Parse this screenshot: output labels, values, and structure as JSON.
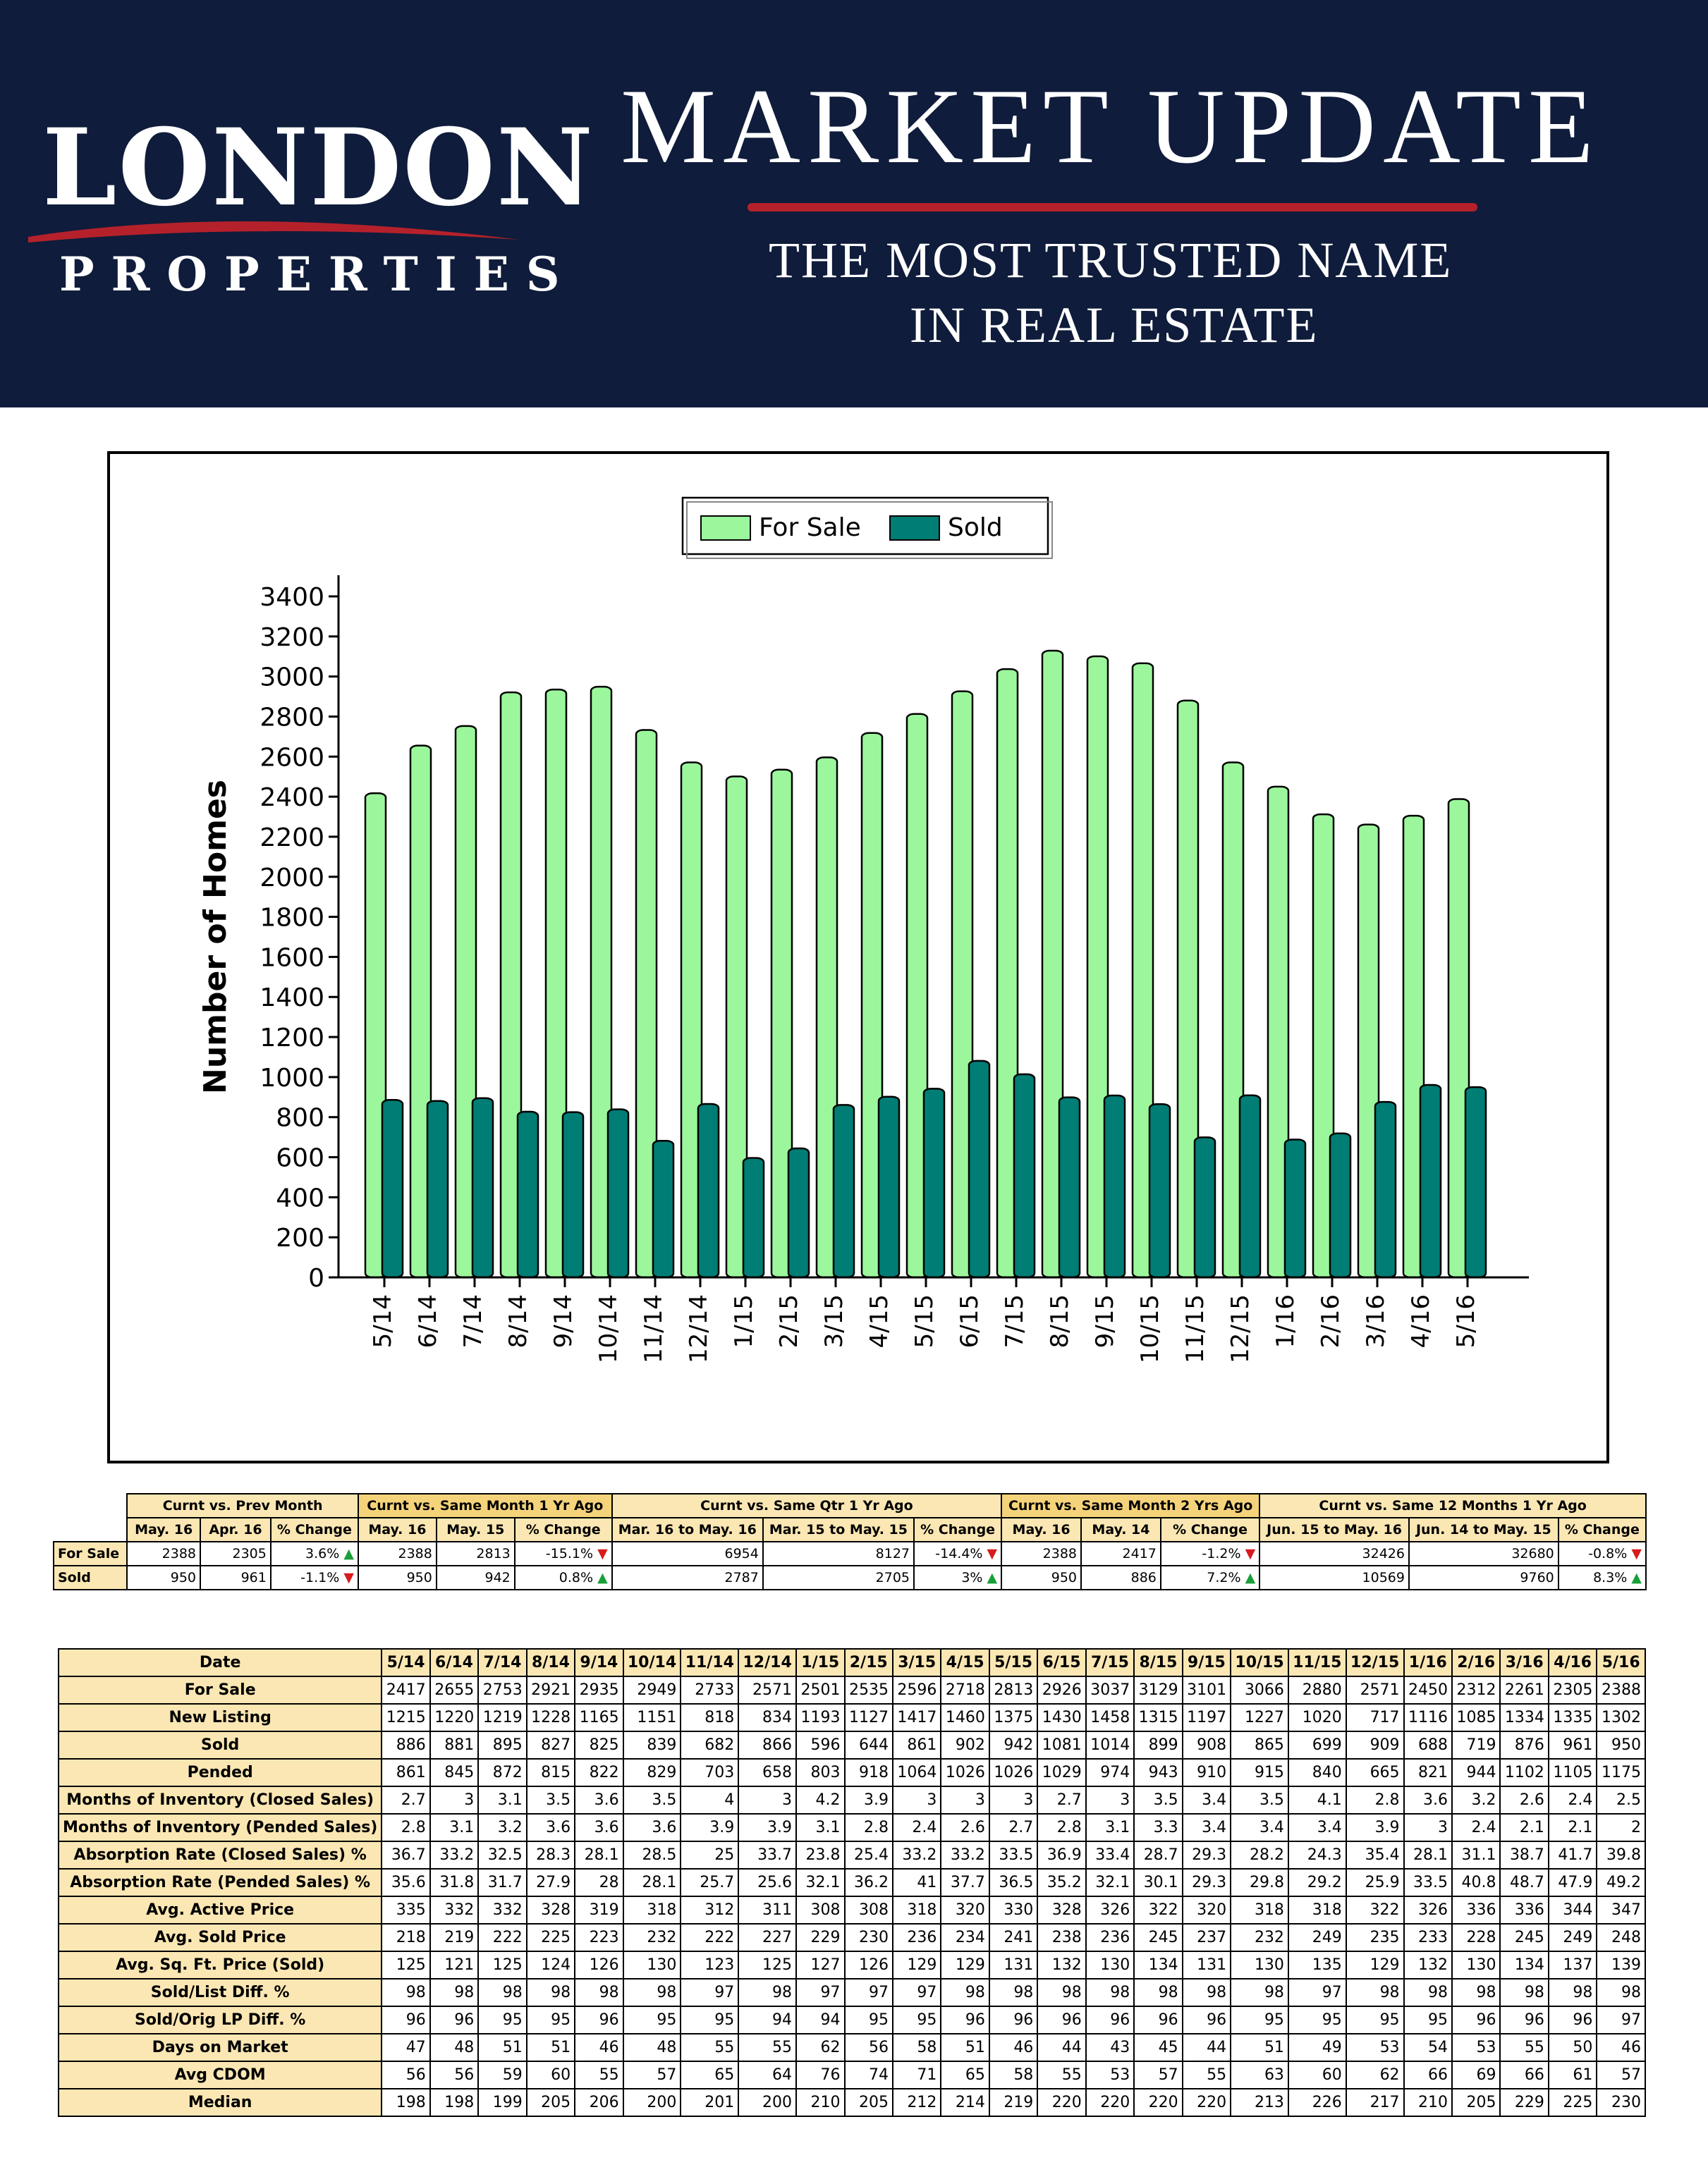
{
  "header": {
    "logo_main": "LONDON",
    "logo_sub": "PROPERTIES",
    "title": "MARKET UPDATE",
    "tagline_line1": "THE MOST TRUSTED NAME",
    "tagline_line2": "IN REAL ESTATE",
    "background_color": "#0f1c3b",
    "accent_color": "#b5212b"
  },
  "chart_data": {
    "type": "bar",
    "ylabel": "Number of Homes",
    "ylim": [
      0,
      3400
    ],
    "yticks": [
      0,
      200,
      400,
      600,
      800,
      1000,
      1200,
      1400,
      1600,
      1800,
      2000,
      2200,
      2400,
      2600,
      2800,
      3000,
      3200,
      3400
    ],
    "legend_position": "top-center",
    "grid": false,
    "categories": [
      "5/14",
      "6/14",
      "7/14",
      "8/14",
      "9/14",
      "10/14",
      "11/14",
      "12/14",
      "1/15",
      "2/15",
      "3/15",
      "4/15",
      "5/15",
      "6/15",
      "7/15",
      "8/15",
      "9/15",
      "10/15",
      "11/15",
      "12/15",
      "1/16",
      "2/16",
      "3/16",
      "4/16",
      "5/16"
    ],
    "series": [
      {
        "name": "For Sale",
        "color": "#9cf79c",
        "values": [
          2417,
          2655,
          2753,
          2921,
          2935,
          2949,
          2733,
          2571,
          2501,
          2535,
          2596,
          2718,
          2813,
          2926,
          3037,
          3129,
          3101,
          3066,
          2880,
          2571,
          2450,
          2312,
          2261,
          2305,
          2388
        ]
      },
      {
        "name": "Sold",
        "color": "#007d74",
        "values": [
          886,
          881,
          895,
          827,
          825,
          839,
          682,
          866,
          596,
          644,
          861,
          902,
          942,
          1081,
          1014,
          899,
          908,
          865,
          699,
          909,
          688,
          719,
          876,
          961,
          950
        ]
      }
    ]
  },
  "summary": {
    "groups": [
      {
        "title": "Curnt vs. Prev Month",
        "cols": [
          "May. 16",
          "Apr. 16",
          "% Change"
        ]
      },
      {
        "title": "Curnt vs. Same Month 1 Yr Ago",
        "cols": [
          "May. 16",
          "May. 15",
          "% Change"
        ]
      },
      {
        "title": "Curnt vs. Same Qtr 1 Yr Ago",
        "cols": [
          "Mar. 16 to May. 16",
          "Mar. 15 to May. 15",
          "% Change"
        ]
      },
      {
        "title": "Curnt vs. Same Month 2 Yrs Ago",
        "cols": [
          "May. 16",
          "May. 14",
          "% Change"
        ]
      },
      {
        "title": "Curnt vs. Same 12 Months 1 Yr Ago",
        "cols": [
          "Jun. 15 to May. 16",
          "Jun. 14 to May. 15",
          "% Change"
        ]
      }
    ],
    "rows": [
      {
        "label": "For Sale",
        "cells": [
          "2388",
          "2305",
          "3.6%",
          "2388",
          "2813",
          "-15.1%",
          "6954",
          "8127",
          "-14.4%",
          "2388",
          "2417",
          "-1.2%",
          "32426",
          "32680",
          "-0.8%"
        ],
        "trend": [
          "up",
          "down",
          "down",
          "down",
          "down"
        ]
      },
      {
        "label": "Sold",
        "cells": [
          "950",
          "961",
          "-1.1%",
          "950",
          "942",
          "0.8%",
          "2787",
          "2705",
          "3%",
          "950",
          "886",
          "7.2%",
          "10569",
          "9760",
          "8.3%"
        ],
        "trend": [
          "down",
          "up",
          "up",
          "up",
          "up"
        ]
      }
    ]
  },
  "detail": {
    "date_label": "Date",
    "dates": [
      "5/14",
      "6/14",
      "7/14",
      "8/14",
      "9/14",
      "10/14",
      "11/14",
      "12/14",
      "1/15",
      "2/15",
      "3/15",
      "4/15",
      "5/15",
      "6/15",
      "7/15",
      "8/15",
      "9/15",
      "10/15",
      "11/15",
      "12/15",
      "1/16",
      "2/16",
      "3/16",
      "4/16",
      "5/16"
    ],
    "rows": [
      {
        "label": "For Sale",
        "values": [
          "2417",
          "2655",
          "2753",
          "2921",
          "2935",
          "2949",
          "2733",
          "2571",
          "2501",
          "2535",
          "2596",
          "2718",
          "2813",
          "2926",
          "3037",
          "3129",
          "3101",
          "3066",
          "2880",
          "2571",
          "2450",
          "2312",
          "2261",
          "2305",
          "2388"
        ]
      },
      {
        "label": "New Listing",
        "values": [
          "1215",
          "1220",
          "1219",
          "1228",
          "1165",
          "1151",
          "818",
          "834",
          "1193",
          "1127",
          "1417",
          "1460",
          "1375",
          "1430",
          "1458",
          "1315",
          "1197",
          "1227",
          "1020",
          "717",
          "1116",
          "1085",
          "1334",
          "1335",
          "1302"
        ]
      },
      {
        "label": "Sold",
        "values": [
          "886",
          "881",
          "895",
          "827",
          "825",
          "839",
          "682",
          "866",
          "596",
          "644",
          "861",
          "902",
          "942",
          "1081",
          "1014",
          "899",
          "908",
          "865",
          "699",
          "909",
          "688",
          "719",
          "876",
          "961",
          "950"
        ]
      },
      {
        "label": "Pended",
        "values": [
          "861",
          "845",
          "872",
          "815",
          "822",
          "829",
          "703",
          "658",
          "803",
          "918",
          "1064",
          "1026",
          "1026",
          "1029",
          "974",
          "943",
          "910",
          "915",
          "840",
          "665",
          "821",
          "944",
          "1102",
          "1105",
          "1175"
        ]
      },
      {
        "label": "Months of Inventory (Closed Sales)",
        "values": [
          "2.7",
          "3",
          "3.1",
          "3.5",
          "3.6",
          "3.5",
          "4",
          "3",
          "4.2",
          "3.9",
          "3",
          "3",
          "3",
          "2.7",
          "3",
          "3.5",
          "3.4",
          "3.5",
          "4.1",
          "2.8",
          "3.6",
          "3.2",
          "2.6",
          "2.4",
          "2.5"
        ]
      },
      {
        "label": "Months of Inventory (Pended Sales)",
        "values": [
          "2.8",
          "3.1",
          "3.2",
          "3.6",
          "3.6",
          "3.6",
          "3.9",
          "3.9",
          "3.1",
          "2.8",
          "2.4",
          "2.6",
          "2.7",
          "2.8",
          "3.1",
          "3.3",
          "3.4",
          "3.4",
          "3.4",
          "3.9",
          "3",
          "2.4",
          "2.1",
          "2.1",
          "2"
        ]
      },
      {
        "label": "Absorption Rate (Closed Sales) %",
        "values": [
          "36.7",
          "33.2",
          "32.5",
          "28.3",
          "28.1",
          "28.5",
          "25",
          "33.7",
          "23.8",
          "25.4",
          "33.2",
          "33.2",
          "33.5",
          "36.9",
          "33.4",
          "28.7",
          "29.3",
          "28.2",
          "24.3",
          "35.4",
          "28.1",
          "31.1",
          "38.7",
          "41.7",
          "39.8"
        ]
      },
      {
        "label": "Absorption Rate (Pended Sales) %",
        "values": [
          "35.6",
          "31.8",
          "31.7",
          "27.9",
          "28",
          "28.1",
          "25.7",
          "25.6",
          "32.1",
          "36.2",
          "41",
          "37.7",
          "36.5",
          "35.2",
          "32.1",
          "30.1",
          "29.3",
          "29.8",
          "29.2",
          "25.9",
          "33.5",
          "40.8",
          "48.7",
          "47.9",
          "49.2"
        ]
      },
      {
        "label": "Avg. Active Price",
        "values": [
          "335",
          "332",
          "332",
          "328",
          "319",
          "318",
          "312",
          "311",
          "308",
          "308",
          "318",
          "320",
          "330",
          "328",
          "326",
          "322",
          "320",
          "318",
          "318",
          "322",
          "326",
          "336",
          "336",
          "344",
          "347"
        ]
      },
      {
        "label": "Avg. Sold Price",
        "values": [
          "218",
          "219",
          "222",
          "225",
          "223",
          "232",
          "222",
          "227",
          "229",
          "230",
          "236",
          "234",
          "241",
          "238",
          "236",
          "245",
          "237",
          "232",
          "249",
          "235",
          "233",
          "228",
          "245",
          "249",
          "248"
        ]
      },
      {
        "label": "Avg. Sq. Ft. Price (Sold)",
        "values": [
          "125",
          "121",
          "125",
          "124",
          "126",
          "130",
          "123",
          "125",
          "127",
          "126",
          "129",
          "129",
          "131",
          "132",
          "130",
          "134",
          "131",
          "130",
          "135",
          "129",
          "132",
          "130",
          "134",
          "137",
          "139"
        ]
      },
      {
        "label": "Sold/List Diff. %",
        "values": [
          "98",
          "98",
          "98",
          "98",
          "98",
          "98",
          "97",
          "98",
          "97",
          "97",
          "97",
          "98",
          "98",
          "98",
          "98",
          "98",
          "98",
          "98",
          "97",
          "98",
          "98",
          "98",
          "98",
          "98",
          "98"
        ]
      },
      {
        "label": "Sold/Orig LP Diff. %",
        "values": [
          "96",
          "96",
          "95",
          "95",
          "96",
          "95",
          "95",
          "94",
          "94",
          "95",
          "95",
          "96",
          "96",
          "96",
          "96",
          "96",
          "96",
          "95",
          "95",
          "95",
          "95",
          "96",
          "96",
          "96",
          "97"
        ]
      },
      {
        "label": "Days on Market",
        "values": [
          "47",
          "48",
          "51",
          "51",
          "46",
          "48",
          "55",
          "55",
          "62",
          "56",
          "58",
          "51",
          "46",
          "44",
          "43",
          "45",
          "44",
          "51",
          "49",
          "53",
          "54",
          "53",
          "55",
          "50",
          "46"
        ]
      },
      {
        "label": "Avg CDOM",
        "values": [
          "56",
          "56",
          "59",
          "60",
          "55",
          "57",
          "65",
          "64",
          "76",
          "74",
          "71",
          "65",
          "58",
          "55",
          "53",
          "57",
          "55",
          "63",
          "60",
          "62",
          "66",
          "69",
          "66",
          "61",
          "57"
        ]
      },
      {
        "label": "Median",
        "values": [
          "198",
          "198",
          "199",
          "205",
          "206",
          "200",
          "201",
          "200",
          "210",
          "205",
          "212",
          "214",
          "219",
          "220",
          "220",
          "220",
          "220",
          "213",
          "226",
          "217",
          "210",
          "205",
          "229",
          "225",
          "230"
        ]
      }
    ]
  }
}
